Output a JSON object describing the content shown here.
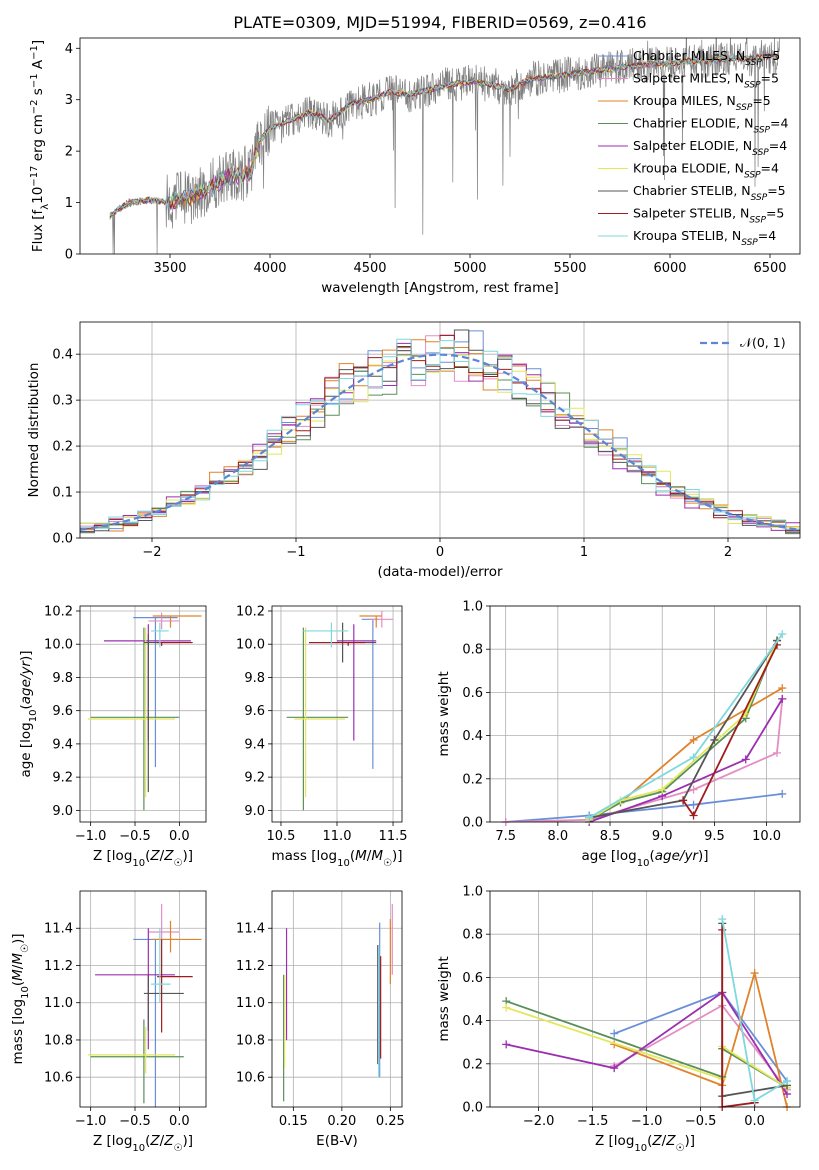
{
  "figure": {
    "title": "PLATE=0309, MJD=51994, FIBERID=0569, z=0.416"
  },
  "colors": {
    "Chabrier MILES": "#6a8fd9",
    "Salpeter MILES": "#e38ec3",
    "Kroupa MILES": "#e0832b",
    "Chabrier ELODIE": "#5a8f5a",
    "Salpeter ELODIE": "#9b2fb0",
    "Kroupa ELODIE": "#e2e85a",
    "Chabrier STELIB": "#555555",
    "Salpeter STELIB": "#a01c1c",
    "Kroupa STELIB": "#7fd8de",
    "data": "#808080",
    "normal": "#5b86d4"
  },
  "chart_data": [
    {
      "id": "spectrum",
      "type": "line",
      "title": "PLATE=0309, MJD=51994, FIBERID=0569, z=0.416",
      "xlabel": "wavelength [Angstrom, rest frame]",
      "ylabel": "Flux [f_λ 10^-17 erg cm^-2 s^-1 A^-1]",
      "xlim": [
        3050,
        6650
      ],
      "ylim": [
        0,
        4.2
      ],
      "xticks": [
        3500,
        4000,
        4500,
        5000,
        5500,
        6000,
        6500
      ],
      "yticks": [
        0,
        1,
        2,
        3,
        4
      ],
      "legend": [
        {
          "label": "Chabrier MILES, N_SSP=5",
          "color": "#6a8fd9"
        },
        {
          "label": "Salpeter MILES, N_SSP=5",
          "color": "#e38ec3"
        },
        {
          "label": "Kroupa MILES, N_SSP=5",
          "color": "#e0832b"
        },
        {
          "label": "Chabrier ELODIE, N_SSP=4",
          "color": "#5a8f5a"
        },
        {
          "label": "Salpeter ELODIE, N_SSP=4",
          "color": "#9b2fb0"
        },
        {
          "label": "Kroupa ELODIE, N_SSP=4",
          "color": "#e2e85a"
        },
        {
          "label": "Chabrier STELIB, N_SSP=5",
          "color": "#555555"
        },
        {
          "label": "Salpeter STELIB, N_SSP=5",
          "color": "#a01c1c"
        },
        {
          "label": "Kroupa STELIB, N_SSP=4",
          "color": "#7fd8de"
        }
      ],
      "model_continuum": [
        [
          3200,
          0.75
        ],
        [
          3250,
          0.9
        ],
        [
          3300,
          1.0
        ],
        [
          3400,
          1.05
        ],
        [
          3500,
          1.0
        ],
        [
          3600,
          1.1
        ],
        [
          3700,
          1.3
        ],
        [
          3800,
          1.5
        ],
        [
          3900,
          1.6
        ],
        [
          3950,
          2.2
        ],
        [
          4000,
          2.45
        ],
        [
          4100,
          2.6
        ],
        [
          4200,
          2.75
        ],
        [
          4300,
          2.6
        ],
        [
          4400,
          2.9
        ],
        [
          4500,
          3.0
        ],
        [
          4600,
          3.15
        ],
        [
          4700,
          3.1
        ],
        [
          4800,
          3.2
        ],
        [
          4900,
          3.3
        ],
        [
          5000,
          3.35
        ],
        [
          5100,
          3.3
        ],
        [
          5200,
          3.2
        ],
        [
          5300,
          3.4
        ],
        [
          5400,
          3.45
        ],
        [
          5500,
          3.5
        ],
        [
          5600,
          3.55
        ],
        [
          5700,
          3.6
        ],
        [
          5800,
          3.65
        ],
        [
          5900,
          3.7
        ],
        [
          6000,
          3.7
        ],
        [
          6100,
          3.75
        ],
        [
          6200,
          3.75
        ],
        [
          6300,
          3.8
        ],
        [
          6400,
          3.8
        ],
        [
          6500,
          3.85
        ]
      ]
    },
    {
      "id": "residuals",
      "type": "histogram",
      "xlabel": "(data-model)/error",
      "ylabel": "Normed distribution",
      "xlim": [
        -2.5,
        2.5
      ],
      "ylim": [
        0,
        0.47
      ],
      "xticks": [
        -2,
        -1,
        0,
        1,
        2
      ],
      "yticks": [
        0.0,
        0.1,
        0.2,
        0.3,
        0.4
      ],
      "legend": [
        {
          "label": "𝒩(0, 1)",
          "color": "#5b86d4",
          "style": "dashed"
        }
      ],
      "bin_width": 0.1
    },
    {
      "id": "age-vs-Z",
      "type": "scatter",
      "xlabel": "Z [log10(Z/Z☉)]",
      "ylabel": "age [log10(age/yr)]",
      "xlim": [
        -1.12,
        0.3
      ],
      "ylim": [
        8.93,
        10.23
      ],
      "xticks": [
        -1.0,
        -0.5,
        0.0
      ],
      "yticks": [
        9.0,
        9.2,
        9.4,
        9.6,
        9.8,
        10.0,
        10.2
      ],
      "points": [
        {
          "model": "Chabrier MILES",
          "x": -0.27,
          "xerr": [
            0.25,
            0.25
          ],
          "y": 10.16,
          "yerr": [
            0.9,
            0.0
          ]
        },
        {
          "model": "Salpeter MILES",
          "x": -0.2,
          "xerr": [
            0.15,
            0.2
          ],
          "y": 10.14,
          "yerr": [
            0.05,
            0.05
          ]
        },
        {
          "model": "Kroupa MILES",
          "x": -0.1,
          "xerr": [
            0.2,
            0.35
          ],
          "y": 10.17,
          "yerr": [
            0.07,
            0.0
          ]
        },
        {
          "model": "Chabrier ELODIE",
          "x": -0.4,
          "xerr": [
            0.6,
            0.4
          ],
          "y": 9.56,
          "yerr": [
            0.56,
            0.54
          ]
        },
        {
          "model": "Salpeter ELODIE",
          "x": -0.35,
          "xerr": [
            0.5,
            0.48
          ],
          "y": 10.02,
          "yerr": [
            0.6,
            0.1
          ]
        },
        {
          "model": "Kroupa ELODIE",
          "x": -0.38,
          "xerr": [
            0.65,
            0.33
          ],
          "y": 9.55,
          "yerr": [
            0.47,
            0.55
          ]
        },
        {
          "model": "Chabrier STELIB",
          "x": -0.35,
          "xerr": [
            0.05,
            0.35
          ],
          "y": 10.01,
          "yerr": [
            0.9,
            0.05
          ]
        },
        {
          "model": "Salpeter STELIB",
          "x": -0.2,
          "xerr": [
            0.05,
            0.35
          ],
          "y": 10.01,
          "yerr": [
            0.02,
            0.0
          ]
        },
        {
          "model": "Kroupa STELIB",
          "x": -0.22,
          "xerr": [
            0.1,
            0.1
          ],
          "y": 10.08,
          "yerr": [
            0.1,
            0.05
          ]
        }
      ]
    },
    {
      "id": "age-vs-mass",
      "type": "scatter",
      "xlabel": "mass [log10(M/M☉)]",
      "ylabel": "",
      "xlim": [
        10.42,
        11.58
      ],
      "ylim": [
        8.93,
        10.23
      ],
      "xticks": [
        10.5,
        11.0,
        11.5
      ],
      "yticks": [
        9.0,
        9.2,
        9.4,
        9.6,
        9.8,
        10.0,
        10.2
      ],
      "points": [
        {
          "model": "Chabrier MILES",
          "x": 11.32,
          "xerr": [
            0.1,
            0.05
          ],
          "y": 10.15,
          "yerr": [
            0.9,
            0.0
          ]
        },
        {
          "model": "Salpeter MILES",
          "x": 11.4,
          "xerr": [
            0.1,
            0.1
          ],
          "y": 10.15,
          "yerr": [
            0.05,
            0.05
          ]
        },
        {
          "model": "Kroupa MILES",
          "x": 11.35,
          "xerr": [
            0.15,
            0.05
          ],
          "y": 10.17,
          "yerr": [
            0.07,
            0.0
          ]
        },
        {
          "model": "Chabrier ELODIE",
          "x": 10.7,
          "xerr": [
            0.15,
            0.4
          ],
          "y": 9.56,
          "yerr": [
            0.56,
            0.54
          ]
        },
        {
          "model": "Salpeter ELODIE",
          "x": 11.15,
          "xerr": [
            0.15,
            0.2
          ],
          "y": 10.02,
          "yerr": [
            0.6,
            0.1
          ]
        },
        {
          "model": "Kroupa ELODIE",
          "x": 10.72,
          "xerr": [
            0.1,
            0.35
          ],
          "y": 9.55,
          "yerr": [
            0.47,
            0.55
          ]
        },
        {
          "model": "Chabrier STELIB",
          "x": 11.05,
          "xerr": [
            0.3,
            0.3
          ],
          "y": 10.01,
          "yerr": [
            0.12,
            0.12
          ]
        },
        {
          "model": "Salpeter STELIB",
          "x": 11.1,
          "xerr": [
            0.35,
            0.15
          ],
          "y": 10.01,
          "yerr": [
            0.02,
            0.0
          ]
        },
        {
          "model": "Kroupa STELIB",
          "x": 10.95,
          "xerr": [
            0.25,
            0.15
          ],
          "y": 10.08,
          "yerr": [
            0.1,
            0.05
          ]
        }
      ]
    },
    {
      "id": "mass-weight-vs-age",
      "type": "line",
      "xlabel": "age [log10(age/yr)]",
      "ylabel": "mass weight",
      "xlim": [
        7.35,
        10.32
      ],
      "ylim": [
        0,
        1
      ],
      "xticks": [
        7.5,
        8.0,
        8.5,
        9.0,
        9.5,
        10.0
      ],
      "yticks": [
        0.0,
        0.2,
        0.4,
        0.6,
        0.8,
        1.0
      ],
      "series": [
        {
          "name": "Chabrier MILES",
          "x": [
            7.5,
            8.3,
            9.3,
            10.15
          ],
          "y": [
            0.0,
            0.03,
            0.08,
            0.13
          ]
        },
        {
          "name": "Salpeter MILES",
          "x": [
            7.5,
            8.3,
            9.3,
            10.1,
            10.15
          ],
          "y": [
            0.0,
            0.01,
            0.15,
            0.32,
            0.57
          ]
        },
        {
          "name": "Kroupa MILES",
          "x": [
            8.3,
            8.6,
            9.3,
            10.15
          ],
          "y": [
            0.01,
            0.09,
            0.38,
            0.62
          ]
        },
        {
          "name": "Chabrier ELODIE",
          "x": [
            8.3,
            8.6,
            9.0,
            9.8,
            10.1
          ],
          "y": [
            0.01,
            0.09,
            0.14,
            0.48,
            0.84
          ]
        },
        {
          "name": "Salpeter ELODIE",
          "x": [
            8.3,
            9.0,
            9.8,
            10.15
          ],
          "y": [
            0.0,
            0.12,
            0.29,
            0.57
          ]
        },
        {
          "name": "Kroupa ELODIE",
          "x": [
            8.3,
            8.6,
            9.0,
            9.8,
            10.1
          ],
          "y": [
            0.01,
            0.1,
            0.15,
            0.5,
            0.84
          ]
        },
        {
          "name": "Chabrier STELIB",
          "x": [
            8.3,
            9.2,
            9.5,
            10.1
          ],
          "y": [
            0.02,
            0.1,
            0.38,
            0.84
          ]
        },
        {
          "name": "Salpeter STELIB",
          "x": [
            9.2,
            9.3,
            10.1
          ],
          "y": [
            0.1,
            0.03,
            0.82
          ]
        },
        {
          "name": "Kroupa STELIB",
          "x": [
            8.3,
            9.3,
            10.15
          ],
          "y": [
            0.02,
            0.3,
            0.87
          ]
        }
      ]
    },
    {
      "id": "mass-vs-Z",
      "type": "scatter",
      "xlabel": "Z [log10(Z/Z☉)]",
      "ylabel": "mass [log10(M/M☉)]",
      "xlim": [
        -1.12,
        0.3
      ],
      "ylim": [
        10.44,
        11.6
      ],
      "xticks": [
        -1.0,
        -0.5,
        0.0
      ],
      "yticks": [
        10.6,
        10.8,
        11.0,
        11.2,
        11.4
      ],
      "points": [
        {
          "model": "Chabrier MILES",
          "x": -0.27,
          "xerr": [
            0.25,
            0.25
          ],
          "y": 11.34,
          "yerr": [
            0.9,
            0.0
          ]
        },
        {
          "model": "Salpeter MILES",
          "x": -0.2,
          "xerr": [
            0.15,
            0.2
          ],
          "y": 11.38,
          "yerr": [
            0.05,
            0.15
          ]
        },
        {
          "model": "Kroupa MILES",
          "x": -0.1,
          "xerr": [
            0.2,
            0.35
          ],
          "y": 11.34,
          "yerr": [
            0.07,
            0.1
          ]
        },
        {
          "model": "Chabrier ELODIE",
          "x": -0.4,
          "xerr": [
            0.6,
            0.45
          ],
          "y": 10.71,
          "yerr": [
            0.25,
            0.2
          ]
        },
        {
          "model": "Salpeter ELODIE",
          "x": -0.35,
          "xerr": [
            0.6,
            0.3
          ],
          "y": 11.15,
          "yerr": [
            0.4,
            0.25
          ]
        },
        {
          "model": "Kroupa ELODIE",
          "x": -0.38,
          "xerr": [
            0.65,
            0.33
          ],
          "y": 10.72,
          "yerr": [
            0.1,
            0.15
          ]
        },
        {
          "model": "Chabrier STELIB",
          "x": -0.35,
          "xerr": [
            0.05,
            0.4
          ],
          "y": 11.05,
          "yerr": [
            0.2,
            0.1
          ]
        },
        {
          "model": "Salpeter STELIB",
          "x": -0.2,
          "xerr": [
            0.05,
            0.35
          ],
          "y": 11.14,
          "yerr": [
            0.3,
            0.2
          ]
        },
        {
          "model": "Kroupa STELIB",
          "x": -0.22,
          "xerr": [
            0.1,
            0.12
          ],
          "y": 11.1,
          "yerr": [
            0.1,
            0.3
          ]
        }
      ]
    },
    {
      "id": "mass-vs-ebv",
      "type": "scatter",
      "xlabel": "E(B-V)",
      "ylabel": "",
      "xlim": [
        0.128,
        0.262
      ],
      "ylim": [
        10.44,
        11.6
      ],
      "xticks": [
        0.15,
        0.2,
        0.25
      ],
      "yticks": [
        10.6,
        10.8,
        11.0,
        11.2,
        11.4
      ],
      "points": [
        {
          "model": "Chabrier MILES",
          "x": 0.239,
          "y": 11.15,
          "yerr": [
            0.55,
            0.28
          ]
        },
        {
          "model": "Salpeter MILES",
          "x": 0.252,
          "y": 11.35,
          "yerr": [
            0.2,
            0.18
          ]
        },
        {
          "model": "Kroupa MILES",
          "x": 0.25,
          "y": 11.27,
          "yerr": [
            0.17,
            0.18
          ]
        },
        {
          "model": "Chabrier ELODIE",
          "x": 0.14,
          "y": 10.8,
          "yerr": [
            0.33,
            0.35
          ]
        },
        {
          "model": "Salpeter ELODIE",
          "x": 0.143,
          "y": 11.1,
          "yerr": [
            0.3,
            0.3
          ]
        },
        {
          "model": "Kroupa ELODIE",
          "x": 0.141,
          "y": 10.95,
          "yerr": [
            0.3,
            0.2
          ]
        },
        {
          "model": "Chabrier STELIB",
          "x": 0.237,
          "y": 11.15,
          "yerr": [
            0.48,
            0.16
          ]
        },
        {
          "model": "Salpeter STELIB",
          "x": 0.24,
          "y": 11.05,
          "yerr": [
            0.35,
            0.2
          ]
        },
        {
          "model": "Kroupa STELIB",
          "x": 0.238,
          "y": 11.1,
          "yerr": [
            0.5,
            0.2
          ]
        }
      ]
    },
    {
      "id": "mass-weight-vs-Z",
      "type": "line",
      "xlabel": "Z [log10(Z/Z☉)]",
      "ylabel": "mass weight",
      "xlim": [
        -2.45,
        0.42
      ],
      "ylim": [
        0,
        1
      ],
      "xticks": [
        -2.0,
        -1.5,
        -1.0,
        -0.5,
        0.0
      ],
      "yticks": [
        0.0,
        0.2,
        0.4,
        0.6,
        0.8,
        1.0
      ],
      "series": [
        {
          "name": "Chabrier MILES",
          "x": [
            -1.3,
            -0.3,
            0.3
          ],
          "y": [
            0.34,
            0.53,
            0.12
          ]
        },
        {
          "name": "Salpeter MILES",
          "x": [
            -1.3,
            -0.3,
            0.3
          ],
          "y": [
            0.19,
            0.47,
            0.08
          ]
        },
        {
          "name": "Kroupa MILES",
          "x": [
            -1.3,
            -0.3,
            0.0,
            0.3
          ],
          "y": [
            0.29,
            0.1,
            0.62,
            0.0
          ]
        },
        {
          "name": "Chabrier ELODIE",
          "x": [
            -2.3,
            -0.3,
            -0.3,
            0.3
          ],
          "y": [
            0.49,
            0.14,
            0.27,
            0.09
          ]
        },
        {
          "name": "Salpeter ELODIE",
          "x": [
            -2.3,
            -1.3,
            -0.3,
            0.3
          ],
          "y": [
            0.29,
            0.18,
            0.53,
            0.06
          ]
        },
        {
          "name": "Kroupa ELODIE",
          "x": [
            -2.3,
            -0.3,
            -0.3,
            0.3
          ],
          "y": [
            0.46,
            0.13,
            0.28,
            0.09
          ]
        },
        {
          "name": "Chabrier STELIB",
          "x": [
            -0.3,
            -0.3,
            0.3
          ],
          "y": [
            0.85,
            0.05,
            0.1
          ]
        },
        {
          "name": "Salpeter STELIB",
          "x": [
            -0.3,
            -0.3,
            0.0
          ],
          "y": [
            0.82,
            0.0,
            0.02
          ]
        },
        {
          "name": "Kroupa STELIB",
          "x": [
            -0.3,
            0.0,
            0.3
          ],
          "y": [
            0.87,
            0.03,
            0.12
          ]
        }
      ]
    }
  ]
}
